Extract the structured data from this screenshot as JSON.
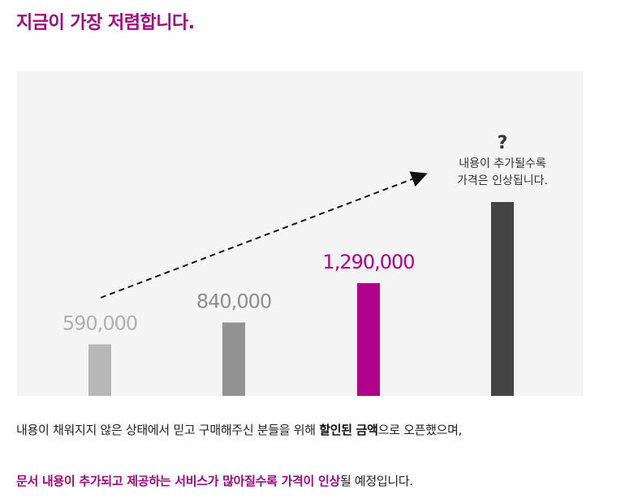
{
  "page": {
    "title": "지금이 가장 저렴합니다."
  },
  "chart_data": {
    "type": "bar",
    "categories": [
      "",
      "",
      "",
      ""
    ],
    "values": [
      590000,
      840000,
      1290000,
      null
    ],
    "value_labels": [
      "590,000",
      "840,000",
      "1,290,000",
      "?"
    ],
    "bar_colors": [
      "#b7b7b7",
      "#929292",
      "#b0008c",
      "#444444"
    ],
    "label_colors": [
      "#b0b0b0",
      "#8f8f8f",
      "#b0008c",
      "#333333"
    ],
    "future_note": [
      "내용이 추가될수록",
      "가격은 인상됩니다."
    ],
    "trend_arrow": "dashed, rising to the right",
    "ylim": [
      0,
      2000000
    ],
    "xlabel": "",
    "ylabel": "",
    "grid": false,
    "legend": "none"
  },
  "description": {
    "line1": {
      "before": "내용이 채워지지 않은 상태에서 믿고 구매해주신 분들을 위해 ",
      "bold": "할인된 금액",
      "after": "으로 오픈했으며,"
    },
    "line2": {
      "highlight": "문서 내용이 추가되고 제공하는 서비스가 많아질수록 가격이 인상",
      "after": "될 예정입니다."
    }
  }
}
